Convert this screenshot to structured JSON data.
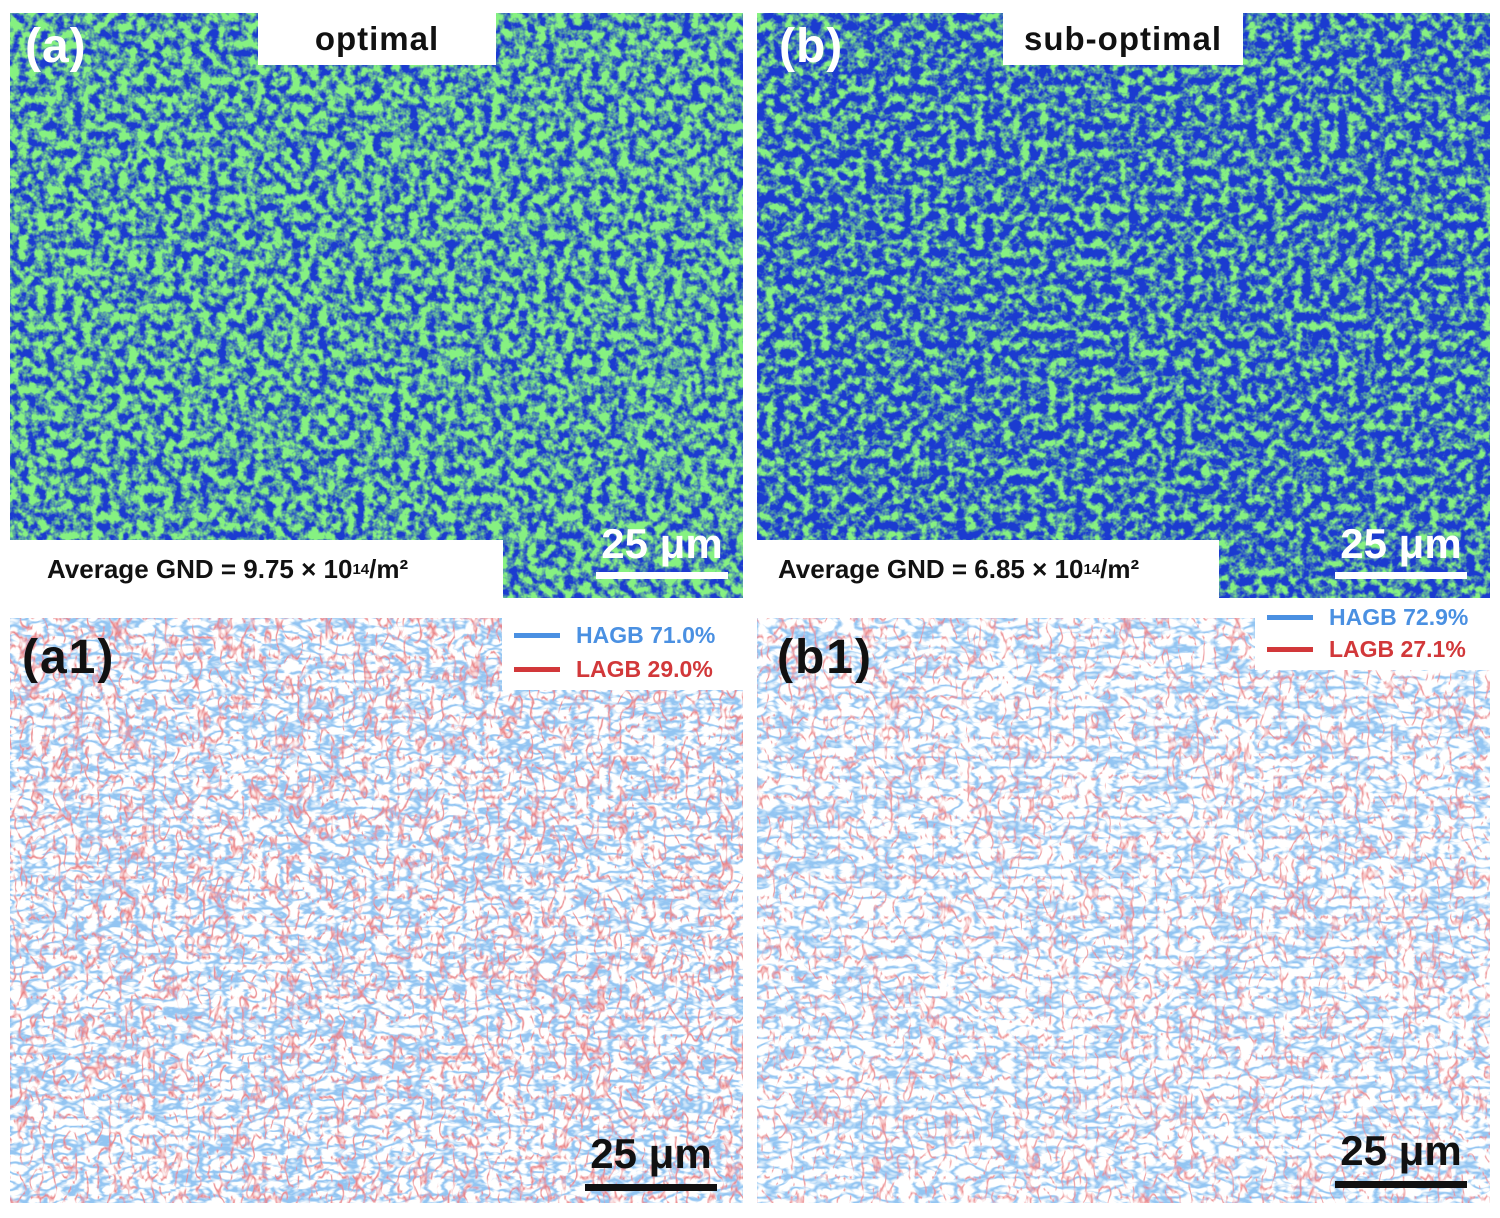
{
  "panels": {
    "a": {
      "label": "(a)",
      "title": "optimal",
      "avg_gnd": {
        "prefix": "Average GND = 9.75 × 10",
        "exponent": "14",
        "unit": "/m²"
      },
      "scale_bar": "25 μm"
    },
    "b": {
      "label": "(b)",
      "title": "sub-optimal",
      "avg_gnd": {
        "prefix": "Average GND = 6.85 × 10",
        "exponent": "14",
        "unit": "/m²"
      },
      "scale_bar": "25 μm"
    },
    "a1": {
      "label": "(a1)",
      "legend": [
        {
          "text": "HAGB 71.0%",
          "color": "#4a90e2"
        },
        {
          "text": "LAGB 29.0%",
          "color": "#d2383a"
        }
      ],
      "scale_bar": "25 μm"
    },
    "b1": {
      "label": "(b1)",
      "legend": [
        {
          "text": "HAGB 72.9%",
          "color": "#4a90e2"
        },
        {
          "text": "LAGB 27.1%",
          "color": "#d2383a"
        }
      ],
      "scale_bar": "25 μm"
    }
  },
  "colors": {
    "gnd_low": "#1b3bd0",
    "gnd_high": "#3ee03a",
    "hagb": "#4a90e2",
    "lagb": "#d2383a"
  }
}
